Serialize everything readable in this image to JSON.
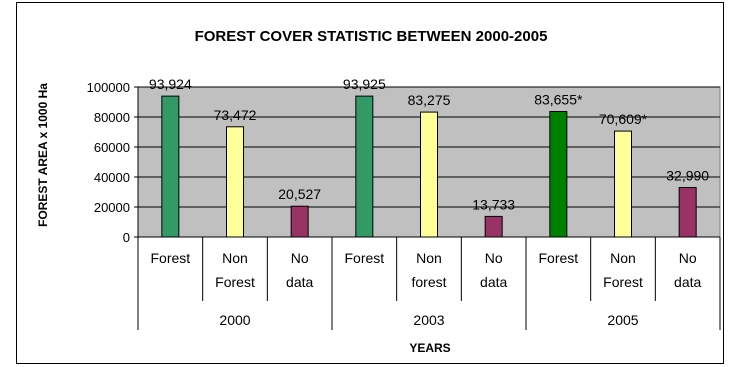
{
  "chart_data": {
    "type": "bar",
    "title": "FOREST COVER STATISTIC BETWEEN 2000-2005",
    "xlabel": "YEARS",
    "ylabel": "FOREST AREA x 1000 Ha",
    "ylim": [
      0,
      100000
    ],
    "yticks": [
      "0",
      "20000",
      "40000",
      "60000",
      "80000",
      "100000"
    ],
    "grid": true,
    "plot_background": "#c0c0c0",
    "groups": [
      {
        "label": "2000",
        "bars": [
          {
            "label": [
              "Forest"
            ],
            "value": 93924,
            "value_label": "93,924",
            "color": "#339966"
          },
          {
            "label": [
              "Non",
              "Forest"
            ],
            "value": 73472,
            "value_label": "73,472",
            "color": "#ffff99"
          },
          {
            "label": [
              "No",
              "data"
            ],
            "value": 20527,
            "value_label": "20,527",
            "color": "#993366"
          }
        ]
      },
      {
        "label": "2003",
        "bars": [
          {
            "label": [
              "Forest"
            ],
            "value": 93925,
            "value_label": "93,925",
            "color": "#339966"
          },
          {
            "label": [
              "Non",
              "forest"
            ],
            "value": 83275,
            "value_label": "83,275",
            "color": "#ffff99"
          },
          {
            "label": [
              "No",
              "data"
            ],
            "value": 13733,
            "value_label": "13,733",
            "color": "#993366"
          }
        ]
      },
      {
        "label": "2005",
        "bars": [
          {
            "label": [
              "Forest"
            ],
            "value": 83655,
            "value_label": "83,655*",
            "color": "#008000"
          },
          {
            "label": [
              "Non",
              "Forest"
            ],
            "value": 70609,
            "value_label": "70,609*",
            "color": "#ffff99"
          },
          {
            "label": [
              "No",
              "data"
            ],
            "value": 32990,
            "value_label": "32,990",
            "color": "#993366"
          }
        ]
      }
    ]
  }
}
